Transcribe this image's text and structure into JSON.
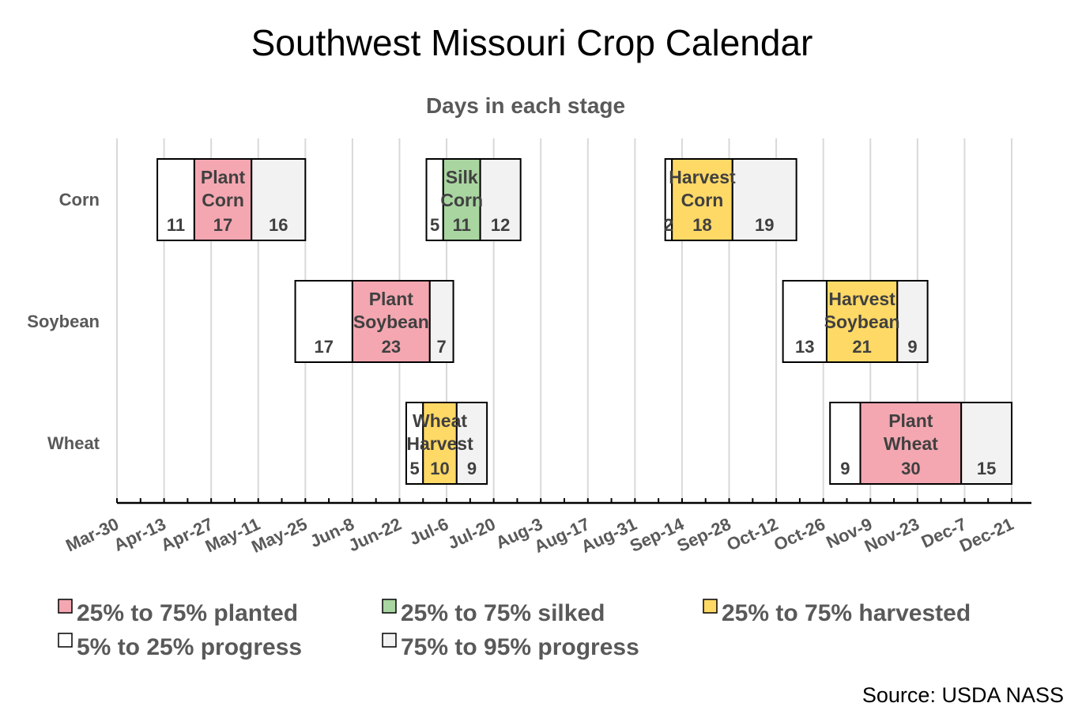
{
  "chart_data": {
    "type": "bar",
    "subtype": "stacked-horizontal-gantt",
    "title": "Southwest Missouri Crop Calendar",
    "subtitle": "Days in each stage",
    "source": "Source: USDA NASS",
    "x_ticks": [
      "Mar-30",
      "Apr-13",
      "Apr-27",
      "May-11",
      "May-25",
      "Jun-8",
      "Jun-22",
      "Jul-6",
      "Jul-20",
      "Aug-3",
      "Aug-17",
      "Aug-31",
      "Sep-14",
      "Sep-28",
      "Oct-12",
      "Oct-26",
      "Nov-9",
      "Nov-23",
      "Dec-7",
      "Dec-21"
    ],
    "x_tick_interval_days": 14,
    "x_range_days": [
      0,
      266
    ],
    "categories": [
      "Corn",
      "Soybean",
      "Wheat"
    ],
    "stages": [
      {
        "crop": "Corn",
        "label": [
          "Plant",
          "Corn"
        ],
        "type": "planted",
        "start_day": 12,
        "segments": [
          11,
          17,
          16
        ]
      },
      {
        "crop": "Corn",
        "label": [
          "Silk",
          "Corn"
        ],
        "type": "silked",
        "start_day": 92,
        "segments": [
          5,
          11,
          12
        ]
      },
      {
        "crop": "Corn",
        "label": [
          "Harvest",
          "Corn"
        ],
        "type": "harvested",
        "start_day": 163,
        "segments": [
          2,
          18,
          19
        ]
      },
      {
        "crop": "Soybean",
        "label": [
          "Plant",
          "Soybean"
        ],
        "type": "planted",
        "start_day": 53,
        "segments": [
          17,
          23,
          7
        ]
      },
      {
        "crop": "Soybean",
        "label": [
          "Harvest",
          "Soybean"
        ],
        "type": "harvested",
        "start_day": 198,
        "segments": [
          13,
          21,
          9
        ]
      },
      {
        "crop": "Wheat",
        "label": [
          "Wheat",
          "Harvest"
        ],
        "type": "harvested",
        "start_day": 86,
        "segments": [
          5,
          10,
          9
        ]
      },
      {
        "crop": "Wheat",
        "label": [
          "Plant",
          "Wheat"
        ],
        "type": "planted",
        "start_day": 212,
        "segments": [
          9,
          30,
          15
        ]
      }
    ],
    "legend": [
      {
        "key": "planted",
        "label": "25% to 75% planted",
        "color": "#F4A7B1"
      },
      {
        "key": "silked",
        "label": "25% to 75% silked",
        "color": "#A9D5A0"
      },
      {
        "key": "harvested",
        "label": "25% to 75% harvested",
        "color": "#FFD966"
      },
      {
        "key": "early",
        "label": "5% to 25% progress",
        "color": "#FFFFFF"
      },
      {
        "key": "late",
        "label": "75% to 95% progress",
        "color": "#F2F2F2"
      }
    ],
    "legend_position": "bottom",
    "grid": true
  }
}
